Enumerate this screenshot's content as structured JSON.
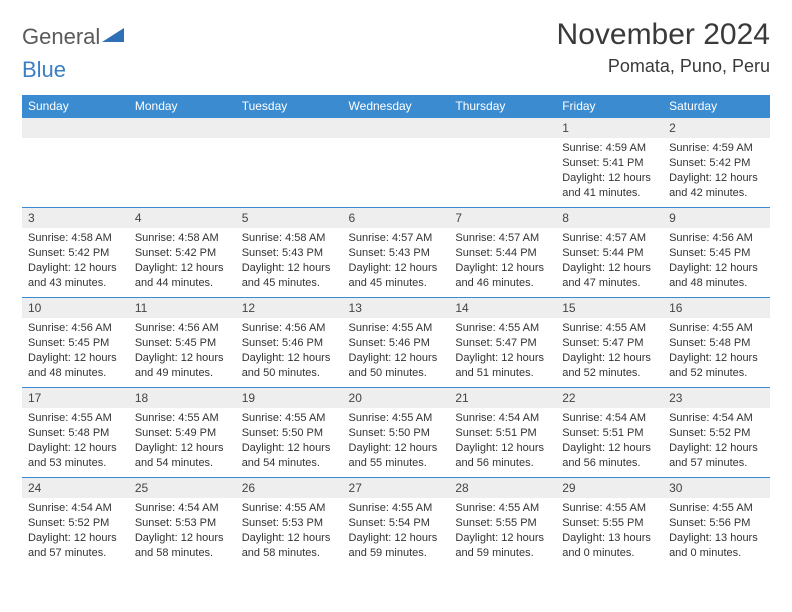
{
  "logo": {
    "word1": "General",
    "word2": "Blue",
    "color1": "#5a5a5a",
    "color2": "#3b7fc4"
  },
  "title": "November 2024",
  "location": "Pomata, Puno, Peru",
  "colors": {
    "header_bg": "#3b8bd1",
    "header_fg": "#ffffff",
    "daynum_bg": "#eeeeee",
    "border": "#3b8bd1",
    "page_bg": "#ffffff",
    "text": "#333333"
  },
  "weekdays": [
    "Sunday",
    "Monday",
    "Tuesday",
    "Wednesday",
    "Thursday",
    "Friday",
    "Saturday"
  ],
  "weeks": [
    [
      {
        "n": "",
        "lines": []
      },
      {
        "n": "",
        "lines": []
      },
      {
        "n": "",
        "lines": []
      },
      {
        "n": "",
        "lines": []
      },
      {
        "n": "",
        "lines": []
      },
      {
        "n": "1",
        "lines": [
          "Sunrise: 4:59 AM",
          "Sunset: 5:41 PM",
          "Daylight: 12 hours and 41 minutes."
        ]
      },
      {
        "n": "2",
        "lines": [
          "Sunrise: 4:59 AM",
          "Sunset: 5:42 PM",
          "Daylight: 12 hours and 42 minutes."
        ]
      }
    ],
    [
      {
        "n": "3",
        "lines": [
          "Sunrise: 4:58 AM",
          "Sunset: 5:42 PM",
          "Daylight: 12 hours and 43 minutes."
        ]
      },
      {
        "n": "4",
        "lines": [
          "Sunrise: 4:58 AM",
          "Sunset: 5:42 PM",
          "Daylight: 12 hours and 44 minutes."
        ]
      },
      {
        "n": "5",
        "lines": [
          "Sunrise: 4:58 AM",
          "Sunset: 5:43 PM",
          "Daylight: 12 hours and 45 minutes."
        ]
      },
      {
        "n": "6",
        "lines": [
          "Sunrise: 4:57 AM",
          "Sunset: 5:43 PM",
          "Daylight: 12 hours and 45 minutes."
        ]
      },
      {
        "n": "7",
        "lines": [
          "Sunrise: 4:57 AM",
          "Sunset: 5:44 PM",
          "Daylight: 12 hours and 46 minutes."
        ]
      },
      {
        "n": "8",
        "lines": [
          "Sunrise: 4:57 AM",
          "Sunset: 5:44 PM",
          "Daylight: 12 hours and 47 minutes."
        ]
      },
      {
        "n": "9",
        "lines": [
          "Sunrise: 4:56 AM",
          "Sunset: 5:45 PM",
          "Daylight: 12 hours and 48 minutes."
        ]
      }
    ],
    [
      {
        "n": "10",
        "lines": [
          "Sunrise: 4:56 AM",
          "Sunset: 5:45 PM",
          "Daylight: 12 hours and 48 minutes."
        ]
      },
      {
        "n": "11",
        "lines": [
          "Sunrise: 4:56 AM",
          "Sunset: 5:45 PM",
          "Daylight: 12 hours and 49 minutes."
        ]
      },
      {
        "n": "12",
        "lines": [
          "Sunrise: 4:56 AM",
          "Sunset: 5:46 PM",
          "Daylight: 12 hours and 50 minutes."
        ]
      },
      {
        "n": "13",
        "lines": [
          "Sunrise: 4:55 AM",
          "Sunset: 5:46 PM",
          "Daylight: 12 hours and 50 minutes."
        ]
      },
      {
        "n": "14",
        "lines": [
          "Sunrise: 4:55 AM",
          "Sunset: 5:47 PM",
          "Daylight: 12 hours and 51 minutes."
        ]
      },
      {
        "n": "15",
        "lines": [
          "Sunrise: 4:55 AM",
          "Sunset: 5:47 PM",
          "Daylight: 12 hours and 52 minutes."
        ]
      },
      {
        "n": "16",
        "lines": [
          "Sunrise: 4:55 AM",
          "Sunset: 5:48 PM",
          "Daylight: 12 hours and 52 minutes."
        ]
      }
    ],
    [
      {
        "n": "17",
        "lines": [
          "Sunrise: 4:55 AM",
          "Sunset: 5:48 PM",
          "Daylight: 12 hours and 53 minutes."
        ]
      },
      {
        "n": "18",
        "lines": [
          "Sunrise: 4:55 AM",
          "Sunset: 5:49 PM",
          "Daylight: 12 hours and 54 minutes."
        ]
      },
      {
        "n": "19",
        "lines": [
          "Sunrise: 4:55 AM",
          "Sunset: 5:50 PM",
          "Daylight: 12 hours and 54 minutes."
        ]
      },
      {
        "n": "20",
        "lines": [
          "Sunrise: 4:55 AM",
          "Sunset: 5:50 PM",
          "Daylight: 12 hours and 55 minutes."
        ]
      },
      {
        "n": "21",
        "lines": [
          "Sunrise: 4:54 AM",
          "Sunset: 5:51 PM",
          "Daylight: 12 hours and 56 minutes."
        ]
      },
      {
        "n": "22",
        "lines": [
          "Sunrise: 4:54 AM",
          "Sunset: 5:51 PM",
          "Daylight: 12 hours and 56 minutes."
        ]
      },
      {
        "n": "23",
        "lines": [
          "Sunrise: 4:54 AM",
          "Sunset: 5:52 PM",
          "Daylight: 12 hours and 57 minutes."
        ]
      }
    ],
    [
      {
        "n": "24",
        "lines": [
          "Sunrise: 4:54 AM",
          "Sunset: 5:52 PM",
          "Daylight: 12 hours and 57 minutes."
        ]
      },
      {
        "n": "25",
        "lines": [
          "Sunrise: 4:54 AM",
          "Sunset: 5:53 PM",
          "Daylight: 12 hours and 58 minutes."
        ]
      },
      {
        "n": "26",
        "lines": [
          "Sunrise: 4:55 AM",
          "Sunset: 5:53 PM",
          "Daylight: 12 hours and 58 minutes."
        ]
      },
      {
        "n": "27",
        "lines": [
          "Sunrise: 4:55 AM",
          "Sunset: 5:54 PM",
          "Daylight: 12 hours and 59 minutes."
        ]
      },
      {
        "n": "28",
        "lines": [
          "Sunrise: 4:55 AM",
          "Sunset: 5:55 PM",
          "Daylight: 12 hours and 59 minutes."
        ]
      },
      {
        "n": "29",
        "lines": [
          "Sunrise: 4:55 AM",
          "Sunset: 5:55 PM",
          "Daylight: 13 hours and 0 minutes."
        ]
      },
      {
        "n": "30",
        "lines": [
          "Sunrise: 4:55 AM",
          "Sunset: 5:56 PM",
          "Daylight: 13 hours and 0 minutes."
        ]
      }
    ]
  ]
}
